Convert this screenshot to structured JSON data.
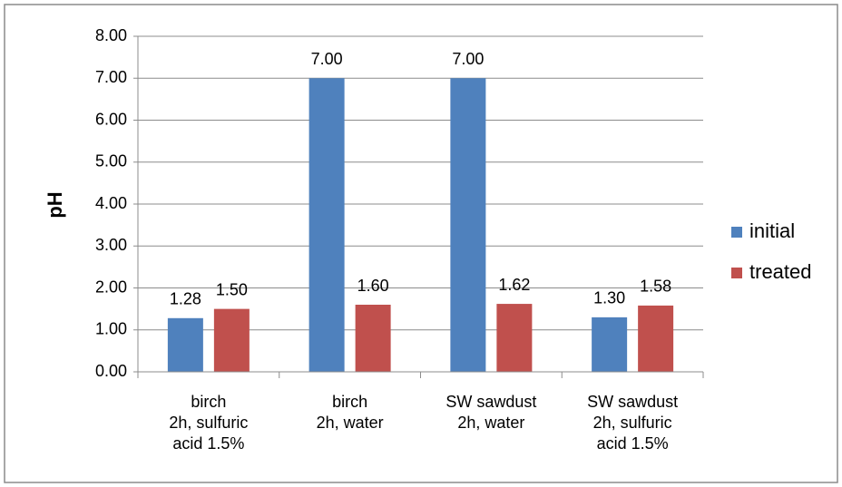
{
  "chart_data": {
    "type": "bar",
    "y_label": "pH",
    "categories": [
      [
        "birch",
        "2h, sulfuric",
        "acid 1.5%"
      ],
      [
        "birch",
        "2h, water"
      ],
      [
        "SW sawdust",
        "2h, water"
      ],
      [
        "SW sawdust",
        "2h, sulfuric",
        "acid 1.5%"
      ]
    ],
    "series": [
      {
        "name": "initial",
        "color": "#4f81bd",
        "values": [
          1.28,
          7,
          7,
          1.3
        ],
        "value_labels": [
          "1.28",
          "7.00",
          "7.00",
          "1.30"
        ]
      },
      {
        "name": "treated",
        "color": "#c0504d",
        "values": [
          1.5,
          1.6,
          1.62,
          1.58
        ],
        "value_labels": [
          "1.50",
          "1.60",
          "1.62",
          "1.58"
        ]
      }
    ],
    "ylim": [
      0,
      8
    ],
    "yticks": [
      {
        "value": 0,
        "label": "0.00"
      },
      {
        "value": 1,
        "label": "1.00"
      },
      {
        "value": 2,
        "label": "2.00"
      },
      {
        "value": 3,
        "label": "3.00"
      },
      {
        "value": 4,
        "label": "4.00"
      },
      {
        "value": 5,
        "label": "5.00"
      },
      {
        "value": 6,
        "label": "6.00"
      },
      {
        "value": 7,
        "label": "7.00"
      },
      {
        "value": 8,
        "label": "8.00"
      }
    ],
    "grid": true,
    "legend": "right"
  }
}
